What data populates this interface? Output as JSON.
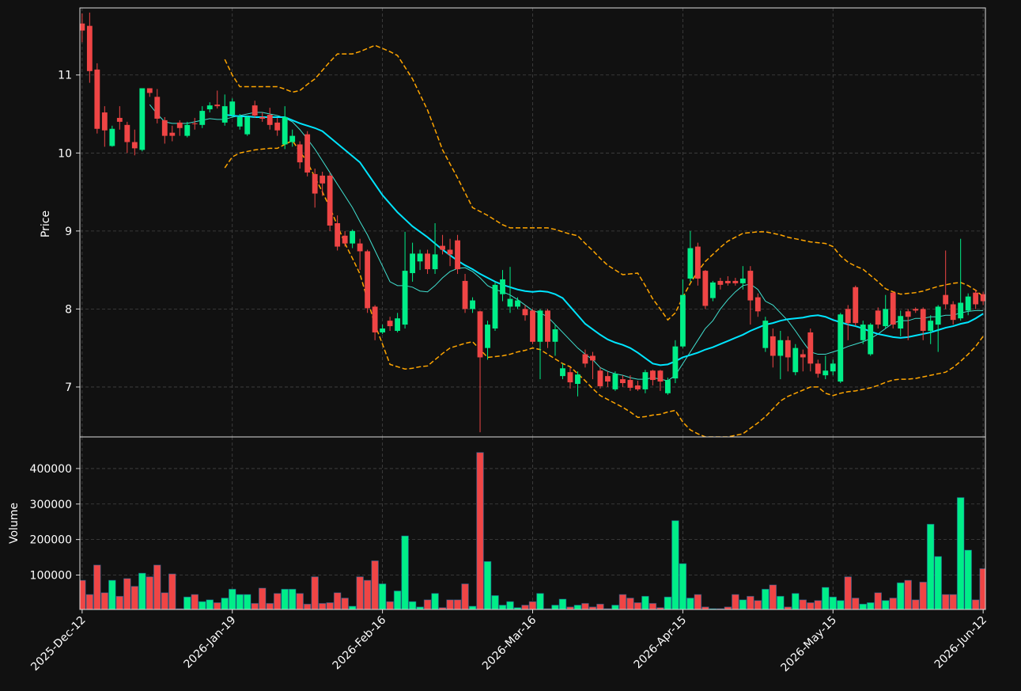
{
  "chart_data": [
    {
      "type": "candlestick",
      "ylabel": "Price",
      "ylim": [
        6.36,
        11.86
      ],
      "yticks": [
        7,
        8,
        9,
        10,
        11
      ],
      "grid": true,
      "up_color": "#00ee88",
      "down_color": "#ef4545",
      "open": [
        11.66,
        11.63,
        11.07,
        10.52,
        10.09,
        10.45,
        10.36,
        10.14,
        10.04,
        10.83,
        10.72,
        10.42,
        10.26,
        10.39,
        10.22,
        10.38,
        10.36,
        10.56,
        10.62,
        10.39,
        10.49,
        10.34,
        10.24,
        10.61,
        10.46,
        10.49,
        10.39,
        10.11,
        10.14,
        10.11,
        10.24,
        9.73,
        9.71,
        9.71,
        9.1,
        8.94,
        8.84,
        8.84,
        8.74,
        8.03,
        7.7,
        7.85,
        7.72,
        7.8,
        8.46,
        8.61,
        8.71,
        8.51,
        8.81,
        8.76,
        8.88,
        8.36,
        8.0,
        7.97,
        7.5,
        7.75,
        8.19,
        8.03,
        8.03,
        8.0,
        7.98,
        7.58,
        7.98,
        7.58,
        7.14,
        7.19,
        7.04,
        7.42,
        7.4,
        7.21,
        7.14,
        6.97,
        7.1,
        7.09,
        7.02,
        6.97,
        7.21,
        7.21,
        6.92,
        7.11,
        7.52,
        8.39,
        8.8,
        8.49,
        8.14,
        8.36,
        8.36,
        8.36,
        8.33,
        8.49,
        8.15,
        7.5,
        7.65,
        7.4,
        7.6,
        7.19,
        7.42,
        7.7,
        7.3,
        7.15,
        7.2,
        7.07,
        8.0,
        8.28,
        7.6,
        7.42,
        7.98,
        7.78,
        8.21,
        7.75,
        7.97,
        8.0,
        8.0,
        7.72,
        7.8,
        8.18,
        8.06,
        7.88,
        7.98,
        8.21,
        8.19
      ],
      "high": [
        11.79,
        11.8,
        11.15,
        10.6,
        10.35,
        10.6,
        10.4,
        10.3,
        10.83,
        10.83,
        10.82,
        10.46,
        10.35,
        10.42,
        10.4,
        10.45,
        10.6,
        10.65,
        10.8,
        10.75,
        10.7,
        10.5,
        10.48,
        10.67,
        10.52,
        10.58,
        10.45,
        10.6,
        10.3,
        10.15,
        10.28,
        9.8,
        9.76,
        9.75,
        9.2,
        9.0,
        9.02,
        8.9,
        8.76,
        8.05,
        7.8,
        7.9,
        7.95,
        8.99,
        8.85,
        8.76,
        8.76,
        9.1,
        8.95,
        8.9,
        8.95,
        8.45,
        8.15,
        7.98,
        7.85,
        8.35,
        8.5,
        8.54,
        8.15,
        8.05,
        8.0,
        8.0,
        8.0,
        7.8,
        7.3,
        7.25,
        7.2,
        7.48,
        7.45,
        7.25,
        7.2,
        7.2,
        7.15,
        7.15,
        7.08,
        7.22,
        7.22,
        7.22,
        7.12,
        7.6,
        8.38,
        9.0,
        8.85,
        8.5,
        8.36,
        8.4,
        8.42,
        8.4,
        8.55,
        8.55,
        8.2,
        7.9,
        7.75,
        7.72,
        7.65,
        7.55,
        7.48,
        7.75,
        7.35,
        7.4,
        7.35,
        7.95,
        8.05,
        8.3,
        7.85,
        7.82,
        8.02,
        8.18,
        8.22,
        7.98,
        8.0,
        8.02,
        8.02,
        7.92,
        8.05,
        8.75,
        8.1,
        8.9,
        8.2,
        8.25,
        8.22
      ],
      "low": [
        11.42,
        10.9,
        10.25,
        10.08,
        10.08,
        10.3,
        10.0,
        9.97,
        10.02,
        10.72,
        10.38,
        10.12,
        10.15,
        10.22,
        10.2,
        10.3,
        10.32,
        10.52,
        10.57,
        10.35,
        10.45,
        10.3,
        10.22,
        10.45,
        10.4,
        10.3,
        10.22,
        10.05,
        10.08,
        9.8,
        9.7,
        9.3,
        9.45,
        9.0,
        8.75,
        8.8,
        8.78,
        8.5,
        7.95,
        7.6,
        7.68,
        7.72,
        7.7,
        7.75,
        8.35,
        8.5,
        8.45,
        8.45,
        8.7,
        8.55,
        8.45,
        7.95,
        7.95,
        6.42,
        7.35,
        7.72,
        8.1,
        7.95,
        8.0,
        7.85,
        7.55,
        7.1,
        7.5,
        7.4,
        7.1,
        6.98,
        6.88,
        7.25,
        7.1,
        6.98,
        7.0,
        6.95,
        7.0,
        6.95,
        6.95,
        6.92,
        7.02,
        6.95,
        6.9,
        7.05,
        7.5,
        8.35,
        8.3,
        8.0,
        8.1,
        8.25,
        8.3,
        8.3,
        8.25,
        7.8,
        7.9,
        7.45,
        7.25,
        7.1,
        7.2,
        7.15,
        7.2,
        7.2,
        7.12,
        7.1,
        7.15,
        7.05,
        7.6,
        7.78,
        7.55,
        7.4,
        7.75,
        7.75,
        7.75,
        7.65,
        7.6,
        7.95,
        7.6,
        7.55,
        7.45,
        8.0,
        7.8,
        7.85,
        7.92,
        8.0,
        8.05
      ],
      "close": [
        11.57,
        11.05,
        10.31,
        10.29,
        10.31,
        10.4,
        10.14,
        10.06,
        10.83,
        10.77,
        10.44,
        10.22,
        10.22,
        10.32,
        10.36,
        10.37,
        10.54,
        10.61,
        10.6,
        10.6,
        10.66,
        10.46,
        10.46,
        10.48,
        10.44,
        10.36,
        10.29,
        10.46,
        10.22,
        9.88,
        9.75,
        9.48,
        9.61,
        9.07,
        8.8,
        8.84,
        9.0,
        8.74,
        8.01,
        7.7,
        7.75,
        7.78,
        7.88,
        8.49,
        8.71,
        8.71,
        8.51,
        8.7,
        8.76,
        8.7,
        8.51,
        8.0,
        8.11,
        7.38,
        7.8,
        8.31,
        8.38,
        8.13,
        8.11,
        7.92,
        7.58,
        7.98,
        7.58,
        7.74,
        7.24,
        7.06,
        7.16,
        7.3,
        7.34,
        7.01,
        7.07,
        7.17,
        7.05,
        6.99,
        6.97,
        7.19,
        7.09,
        7.07,
        7.09,
        7.52,
        8.18,
        8.78,
        8.39,
        8.04,
        8.34,
        8.31,
        8.33,
        8.33,
        8.39,
        8.11,
        7.97,
        7.85,
        7.4,
        7.6,
        7.38,
        7.5,
        7.38,
        7.3,
        7.17,
        7.21,
        7.3,
        7.93,
        7.82,
        7.82,
        7.8,
        7.8,
        7.8,
        8.0,
        7.8,
        7.91,
        7.9,
        7.98,
        7.72,
        7.85,
        8.03,
        8.06,
        7.86,
        8.08,
        8.16,
        8.06,
        8.1
      ],
      "lines": [
        {
          "color": "#40e0d0",
          "width": 1,
          "dashed": false,
          "values": [
            null,
            null,
            null,
            null,
            null,
            null,
            null,
            null,
            null,
            10.62,
            10.5,
            10.4,
            10.38,
            10.38,
            10.38,
            10.4,
            10.42,
            10.44,
            10.43,
            10.43,
            10.46,
            10.48,
            10.5,
            10.52,
            10.52,
            10.5,
            10.48,
            10.45,
            10.4,
            10.3,
            10.18,
            10.05,
            9.9,
            9.75,
            9.6,
            9.45,
            9.3,
            9.12,
            8.95,
            8.75,
            8.55,
            8.35,
            8.3,
            8.3,
            8.28,
            8.23,
            8.22,
            8.3,
            8.4,
            8.48,
            8.52,
            8.53,
            8.48,
            8.4,
            8.3,
            8.25,
            8.22,
            8.18,
            8.12,
            8.05,
            7.98,
            7.95,
            7.9,
            7.8,
            7.7,
            7.6,
            7.5,
            7.42,
            7.35,
            7.25,
            7.2,
            7.17,
            7.15,
            7.12,
            7.1,
            7.1,
            7.12,
            7.1,
            7.08,
            7.15,
            7.3,
            7.45,
            7.6,
            7.75,
            7.85,
            8.0,
            8.12,
            8.22,
            8.3,
            8.32,
            8.25,
            8.1,
            8.05,
            7.95,
            7.85,
            7.72,
            7.58,
            7.45,
            7.42,
            7.42,
            7.45,
            7.48,
            7.52,
            7.55,
            7.58,
            7.62,
            7.68,
            7.75,
            7.82,
            7.85,
            7.85,
            7.88,
            7.88,
            7.9,
            7.9,
            7.92,
            7.92,
            7.95,
            7.97,
            7.98,
            7.98
          ]
        },
        {
          "color": "#00e5ff",
          "width": 2,
          "dashed": false,
          "values": [
            null,
            null,
            null,
            null,
            null,
            null,
            null,
            null,
            null,
            null,
            null,
            null,
            null,
            null,
            null,
            null,
            null,
            null,
            null,
            10.49,
            10.48,
            10.47,
            10.47,
            10.46,
            10.46,
            10.46,
            10.46,
            10.46,
            10.42,
            10.38,
            10.35,
            10.32,
            10.28,
            10.2,
            10.12,
            10.04,
            9.96,
            9.88,
            9.74,
            9.6,
            9.46,
            9.35,
            9.24,
            9.15,
            9.06,
            8.99,
            8.92,
            8.84,
            8.76,
            8.69,
            8.62,
            8.56,
            8.51,
            8.45,
            8.4,
            8.35,
            8.31,
            8.28,
            8.25,
            8.23,
            8.22,
            8.23,
            8.22,
            8.19,
            8.14,
            8.03,
            7.92,
            7.81,
            7.74,
            7.67,
            7.61,
            7.57,
            7.54,
            7.5,
            7.44,
            7.37,
            7.3,
            7.28,
            7.29,
            7.33,
            7.38,
            7.41,
            7.44,
            7.48,
            7.51,
            7.55,
            7.59,
            7.63,
            7.67,
            7.72,
            7.76,
            7.8,
            7.82,
            7.85,
            7.87,
            7.88,
            7.89,
            7.91,
            7.92,
            7.9,
            7.86,
            7.83,
            7.8,
            7.78,
            7.75,
            7.71,
            7.68,
            7.66,
            7.64,
            7.63,
            7.64,
            7.66,
            7.68,
            7.7,
            7.73,
            7.76,
            7.78,
            7.81,
            7.83,
            7.88,
            7.94
          ]
        },
        {
          "color": "#ffa500",
          "width": 1.5,
          "dashed": true,
          "values": [
            null,
            null,
            null,
            null,
            null,
            null,
            null,
            null,
            null,
            null,
            null,
            null,
            null,
            null,
            null,
            null,
            null,
            null,
            null,
            11.2,
            11.0,
            10.85,
            10.85,
            10.85,
            10.85,
            10.85,
            10.85,
            10.82,
            10.78,
            10.8,
            10.88,
            10.95,
            11.06,
            11.17,
            11.27,
            11.27,
            11.27,
            11.3,
            11.34,
            11.38,
            11.34,
            11.3,
            11.25,
            11.1,
            10.95,
            10.75,
            10.55,
            10.3,
            10.04,
            9.86,
            9.68,
            9.49,
            9.3,
            9.25,
            9.2,
            9.14,
            9.08,
            9.04,
            9.04,
            9.04,
            9.04,
            9.04,
            9.04,
            9.02,
            8.99,
            8.96,
            8.94,
            8.84,
            8.75,
            8.65,
            8.56,
            8.5,
            8.44,
            8.45,
            8.46,
            8.3,
            8.13,
            8.0,
            7.86,
            7.95,
            8.15,
            8.33,
            8.48,
            8.61,
            8.7,
            8.79,
            8.87,
            8.92,
            8.97,
            8.98,
            8.99,
            8.99,
            8.97,
            8.95,
            8.92,
            8.9,
            8.88,
            8.86,
            8.85,
            8.84,
            8.8,
            8.68,
            8.6,
            8.55,
            8.51,
            8.43,
            8.35,
            8.26,
            8.22,
            8.19,
            8.2,
            8.21,
            8.23,
            8.26,
            8.29,
            8.31,
            8.33,
            8.34,
            8.3,
            8.24,
            8.16
          ]
        },
        {
          "color": "#ffa500",
          "width": 1.5,
          "dashed": true,
          "values": [
            null,
            null,
            null,
            null,
            null,
            null,
            null,
            null,
            null,
            null,
            null,
            null,
            null,
            null,
            null,
            null,
            null,
            null,
            null,
            9.81,
            9.95,
            10.0,
            10.02,
            10.04,
            10.05,
            10.06,
            10.06,
            10.11,
            10.16,
            10.02,
            9.88,
            9.69,
            9.5,
            9.3,
            9.07,
            8.84,
            8.65,
            8.45,
            8.12,
            7.8,
            7.55,
            7.29,
            7.26,
            7.23,
            7.24,
            7.26,
            7.27,
            7.35,
            7.43,
            7.5,
            7.53,
            7.56,
            7.58,
            7.48,
            7.38,
            7.39,
            7.4,
            7.42,
            7.45,
            7.47,
            7.5,
            7.48,
            7.42,
            7.36,
            7.3,
            7.26,
            7.17,
            7.08,
            6.98,
            6.89,
            6.84,
            6.79,
            6.74,
            6.68,
            6.61,
            6.62,
            6.64,
            6.65,
            6.68,
            6.7,
            6.55,
            6.45,
            6.4,
            6.36,
            6.36,
            6.36,
            6.36,
            6.38,
            6.4,
            6.47,
            6.54,
            6.62,
            6.72,
            6.82,
            6.88,
            6.92,
            6.96,
            7.0,
            7.0,
            6.92,
            6.89,
            6.92,
            6.94,
            6.95,
            6.97,
            6.99,
            7.02,
            7.06,
            7.09,
            7.1,
            7.1,
            7.11,
            7.13,
            7.15,
            7.17,
            7.19,
            7.25,
            7.33,
            7.42,
            7.52,
            7.65
          ]
        }
      ]
    },
    {
      "type": "bar",
      "ylabel": "Volume",
      "ylim": [
        3000,
        489000
      ],
      "yticks": [
        100000,
        200000,
        300000,
        400000
      ],
      "grid": true,
      "xlim": [
        -0.3,
        120.3
      ],
      "xticks": [
        {
          "value": 0,
          "label": "2025-Dec-12"
        },
        {
          "value": 20,
          "label": "2026-Jan-19"
        },
        {
          "value": 40,
          "label": "2026-Feb-16"
        },
        {
          "value": 60,
          "label": "2026-Mar-16"
        },
        {
          "value": 80,
          "label": "2026-Apr-15"
        },
        {
          "value": 100,
          "label": "2026-May-15"
        },
        {
          "value": 120,
          "label": "2026-Jun-12"
        }
      ],
      "values": [
        85000,
        45000,
        128000,
        50000,
        85000,
        40000,
        90000,
        68000,
        105000,
        95000,
        128000,
        50000,
        103000,
        5000,
        38000,
        45000,
        25000,
        30000,
        22000,
        35000,
        60000,
        45000,
        45000,
        20000,
        63000,
        20000,
        48000,
        60000,
        60000,
        48000,
        18000,
        95000,
        20000,
        22000,
        50000,
        35000,
        12000,
        95000,
        85000,
        140000,
        75000,
        25000,
        55000,
        210000,
        25000,
        10000,
        30000,
        48000,
        8000,
        30000,
        30000,
        75000,
        12000,
        445000,
        138000,
        42000,
        15000,
        25000,
        8000,
        15000,
        25000,
        48000,
        5000,
        15000,
        32000,
        10000,
        15000,
        20000,
        10000,
        18000,
        5000,
        15000,
        45000,
        35000,
        22000,
        40000,
        20000,
        8000,
        38000,
        253000,
        132000,
        35000,
        45000,
        10000,
        5000,
        5000,
        10000,
        45000,
        30000,
        40000,
        28000,
        60000,
        72000,
        40000,
        10000,
        48000,
        30000,
        22000,
        28000,
        65000,
        38000,
        28000,
        95000,
        35000,
        18000,
        22000,
        50000,
        28000,
        35000,
        78000,
        85000,
        30000,
        80000,
        243000,
        152000,
        45000,
        45000,
        318000,
        170000,
        30000,
        118000
      ]
    }
  ]
}
